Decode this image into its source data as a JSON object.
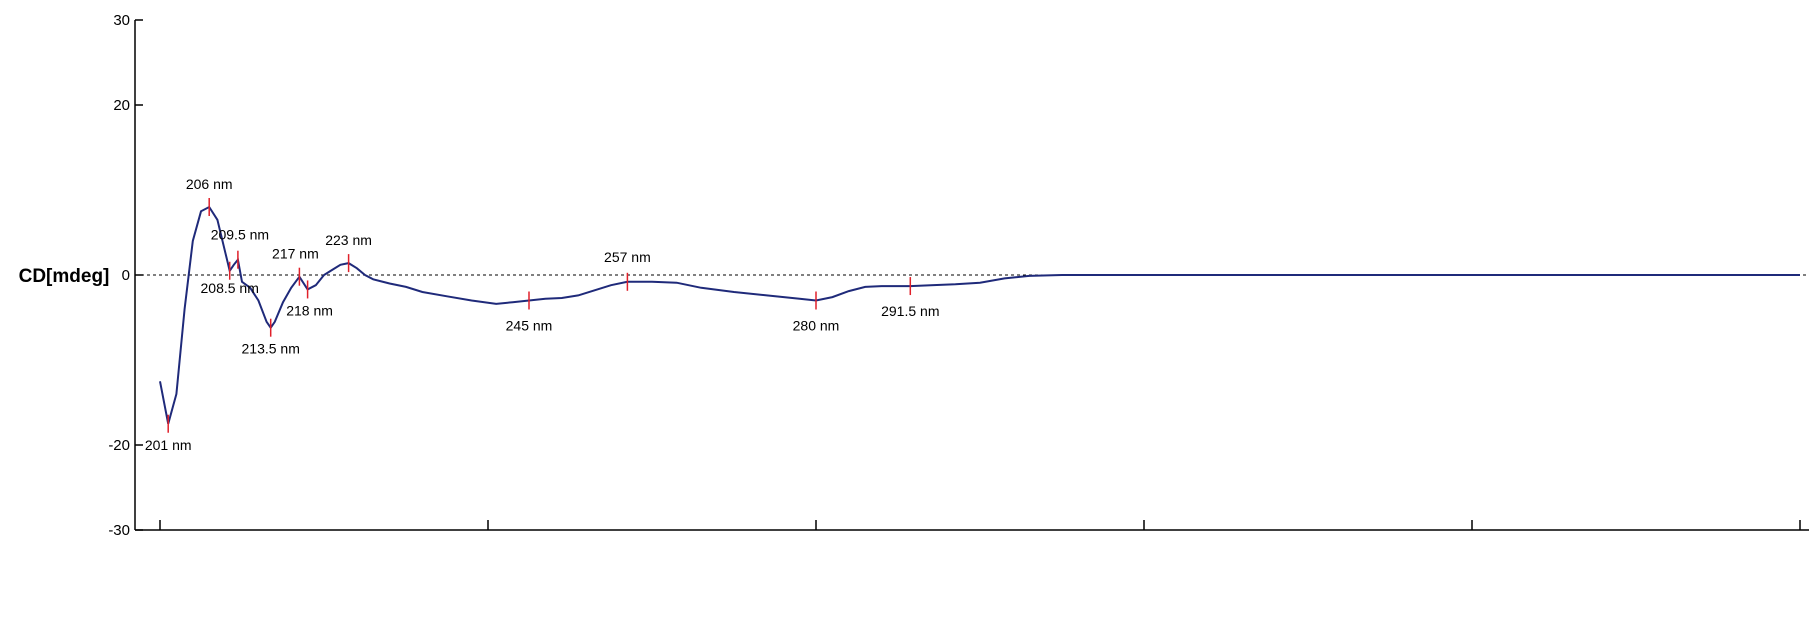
{
  "chart_data": {
    "type": "line",
    "title": "",
    "xlabel": "",
    "ylabel": "CD[mdeg]",
    "xlim": [
      200,
      400
    ],
    "ylim": [
      -30,
      30
    ],
    "yticks": [
      30,
      20,
      0,
      -20,
      -30
    ],
    "xticks": [
      200,
      240,
      280,
      320,
      360,
      400
    ],
    "zero_line": true,
    "line_color": "#1f2a7a",
    "marker_color": "#e0202a",
    "series": [
      {
        "x": [
          200,
          201,
          202,
          203,
          204,
          205,
          206,
          207,
          208,
          208.5,
          209,
          209.5,
          210,
          211,
          212,
          213,
          213.5,
          214,
          215,
          216,
          217,
          218,
          219,
          220,
          221,
          222,
          223,
          224,
          225,
          226,
          228,
          230,
          232,
          235,
          238,
          241,
          243,
          245,
          247,
          249,
          251,
          253,
          255,
          257,
          260,
          263,
          266,
          270,
          274,
          278,
          280,
          282,
          284,
          286,
          288,
          291.5,
          294,
          297,
          300,
          303,
          306,
          310,
          320,
          340,
          360,
          380,
          400
        ],
        "values": [
          -12.5,
          -17.5,
          -14,
          -4,
          4,
          7.5,
          8,
          6.5,
          2.5,
          0.5,
          1.2,
          1.8,
          -0.8,
          -1.5,
          -3,
          -5.5,
          -6.2,
          -5.5,
          -3.2,
          -1.5,
          -0.2,
          -1.7,
          -1.2,
          0,
          0.6,
          1.2,
          1.4,
          0.8,
          0,
          -0.5,
          -1,
          -1.4,
          -2,
          -2.5,
          -3,
          -3.4,
          -3.2,
          -3,
          -2.8,
          -2.7,
          -2.4,
          -1.8,
          -1.2,
          -0.8,
          -0.8,
          -0.9,
          -1.5,
          -2,
          -2.4,
          -2.8,
          -3.0,
          -2.6,
          -1.9,
          -1.4,
          -1.3,
          -1.3,
          -1.2,
          -1.1,
          -0.9,
          -0.4,
          -0.1,
          0,
          0,
          0,
          0,
          0,
          0
        ]
      }
    ],
    "annotations": [
      {
        "label": "201 nm",
        "x": 201,
        "y": -17.5
      },
      {
        "label": "206 nm",
        "x": 206,
        "y": 8
      },
      {
        "label": "208.5 nm",
        "x": 208.5,
        "y": 0.5
      },
      {
        "label": "209.5 nm",
        "x": 209.5,
        "y": 1.8
      },
      {
        "label": "213.5 nm",
        "x": 213.5,
        "y": -6.2
      },
      {
        "label": "217 nm",
        "x": 217,
        "y": -0.2
      },
      {
        "label": "218 nm",
        "x": 218,
        "y": -1.7
      },
      {
        "label": "223 nm",
        "x": 223,
        "y": 1.4
      },
      {
        "label": "245 nm",
        "x": 245,
        "y": -3
      },
      {
        "label": "257 nm",
        "x": 257,
        "y": -0.8
      },
      {
        "label": "280 nm",
        "x": 280,
        "y": -3.0
      },
      {
        "label": "291.5 nm",
        "x": 291.5,
        "y": -1.3
      }
    ]
  }
}
